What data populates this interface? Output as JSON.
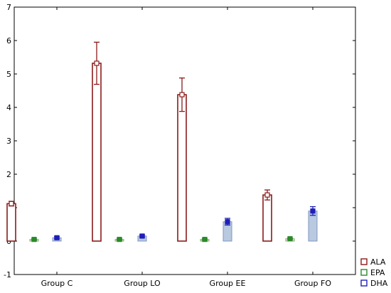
{
  "chart_data": {
    "type": "bar",
    "title": "",
    "xlabel": "",
    "ylabel": "",
    "categories": [
      "Group C",
      "Group LO",
      "Group EE",
      "Group FO"
    ],
    "ylim": [
      -1,
      7
    ],
    "yticks": [
      -1,
      0,
      1,
      2,
      3,
      4,
      5,
      6,
      7
    ],
    "grid": false,
    "legend_position": "bottom-right",
    "series": [
      {
        "name": "ALA",
        "values": [
          1.12,
          5.32,
          4.38,
          1.38
        ],
        "error": [
          0.07,
          0.63,
          0.5,
          0.15
        ],
        "fill": "#ffffff",
        "stroke": "#8b1a1a"
      },
      {
        "name": "EPA",
        "values": [
          0.05,
          0.05,
          0.05,
          0.07
        ],
        "error": [
          0.02,
          0.02,
          0.02,
          0.02
        ],
        "fill": "#dce8c4",
        "stroke": "#8aa678",
        "marker": "#2a8a2a"
      },
      {
        "name": "DHA",
        "values": [
          0.1,
          0.15,
          0.58,
          0.9
        ],
        "error": [
          0.03,
          0.03,
          0.1,
          0.13
        ],
        "fill": "#b8c9e0",
        "stroke": "#7f97bf",
        "marker": "#1f1fb8"
      }
    ]
  }
}
